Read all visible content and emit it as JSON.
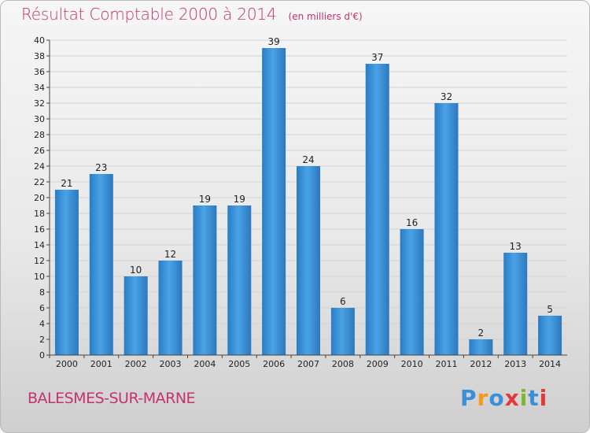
{
  "header": {
    "title": "Résultat Comptable 2000 à 2014",
    "unit": "(en milliers d'€)"
  },
  "commune": "BALESMES-SUR-MARNE",
  "logo": {
    "text": "Proxiti",
    "letters": [
      "P",
      "r",
      "o",
      "x",
      "i",
      "t",
      "i"
    ],
    "colors": [
      "#3a8fd6",
      "#f39a1e",
      "#3a8fd6",
      "#e23a3a",
      "#7cb82f",
      "#3a8fd6",
      "#e23a3a"
    ]
  },
  "chart_data": {
    "type": "bar",
    "title": "Résultat Comptable 2000 à 2014",
    "subtitle": "(en milliers d'€)",
    "xlabel": "",
    "ylabel": "",
    "categories": [
      "2000",
      "2001",
      "2002",
      "2003",
      "2004",
      "2005",
      "2006",
      "2007",
      "2008",
      "2009",
      "2010",
      "2011",
      "2012",
      "2013",
      "2014"
    ],
    "values": [
      21,
      23,
      10,
      12,
      19,
      19,
      39,
      24,
      6,
      37,
      16,
      32,
      2,
      13,
      5
    ],
    "ylim": [
      0,
      40
    ],
    "ytick_step": 2,
    "grid": true,
    "bar_color": "#3d93d8"
  }
}
